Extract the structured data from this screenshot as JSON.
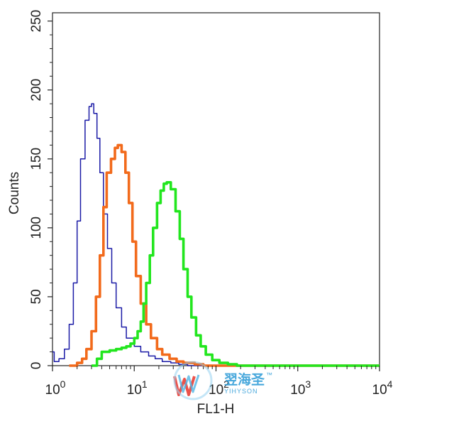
{
  "chart_data": {
    "type": "line",
    "xlabel": "FL1-H",
    "ylabel": "Counts",
    "x_scale": "log",
    "xlim": [
      1,
      10000
    ],
    "ylim": [
      0,
      256
    ],
    "x_ticks": [
      {
        "value": 1,
        "base": "10",
        "exp": "0"
      },
      {
        "value": 10,
        "base": "10",
        "exp": "1"
      },
      {
        "value": 100,
        "base": "10",
        "exp": "2"
      },
      {
        "value": 1000,
        "base": "10",
        "exp": "3"
      },
      {
        "value": 10000,
        "base": "10",
        "exp": "4"
      }
    ],
    "y_ticks": [
      0,
      50,
      100,
      150,
      200,
      250
    ],
    "grid": false,
    "series": [
      {
        "color": "#1a1aa6",
        "stroke": "thin",
        "points": [
          [
            1.0,
            10
          ],
          [
            1.05,
            3
          ],
          [
            1.1,
            3
          ],
          [
            1.2,
            5
          ],
          [
            1.4,
            12
          ],
          [
            1.6,
            30
          ],
          [
            1.8,
            60
          ],
          [
            2.0,
            105
          ],
          [
            2.2,
            150
          ],
          [
            2.5,
            178
          ],
          [
            2.8,
            188
          ],
          [
            3.0,
            190
          ],
          [
            3.2,
            183
          ],
          [
            3.5,
            165
          ],
          [
            3.8,
            140
          ],
          [
            4.2,
            110
          ],
          [
            4.7,
            85
          ],
          [
            5.3,
            60
          ],
          [
            6.0,
            42
          ],
          [
            7.0,
            28
          ],
          [
            8.0,
            20
          ],
          [
            10,
            14
          ],
          [
            12,
            10
          ],
          [
            15,
            7
          ],
          [
            18,
            5
          ],
          [
            22,
            3
          ],
          [
            28,
            2
          ],
          [
            35,
            1
          ],
          [
            45,
            0
          ],
          [
            10000,
            0
          ]
        ]
      },
      {
        "color": "#f26a1b",
        "stroke": "thick",
        "points": [
          [
            1.6,
            0
          ],
          [
            2.0,
            2
          ],
          [
            2.3,
            5
          ],
          [
            2.6,
            12
          ],
          [
            3.0,
            25
          ],
          [
            3.4,
            50
          ],
          [
            3.8,
            80
          ],
          [
            4.2,
            115
          ],
          [
            4.6,
            140
          ],
          [
            5.2,
            150
          ],
          [
            5.8,
            158
          ],
          [
            6.3,
            160
          ],
          [
            7.0,
            155
          ],
          [
            7.8,
            140
          ],
          [
            8.6,
            118
          ],
          [
            9.5,
            90
          ],
          [
            10.5,
            65
          ],
          [
            12,
            45
          ],
          [
            14,
            30
          ],
          [
            16,
            20
          ],
          [
            19,
            12
          ],
          [
            22,
            8
          ],
          [
            27,
            5
          ],
          [
            33,
            3
          ],
          [
            40,
            2
          ],
          [
            55,
            1
          ],
          [
            70,
            0
          ],
          [
            10000,
            0
          ]
        ]
      },
      {
        "color": "#22e61e",
        "stroke": "thick",
        "points": [
          [
            3.0,
            0
          ],
          [
            3.5,
            5
          ],
          [
            4.0,
            10
          ],
          [
            5,
            11
          ],
          [
            6,
            12
          ],
          [
            7,
            13
          ],
          [
            8,
            14
          ],
          [
            9,
            16
          ],
          [
            10,
            20
          ],
          [
            11,
            25
          ],
          [
            12,
            32
          ],
          [
            13,
            45
          ],
          [
            14,
            60
          ],
          [
            15.5,
            80
          ],
          [
            17,
            100
          ],
          [
            19,
            118
          ],
          [
            21,
            127
          ],
          [
            23,
            132
          ],
          [
            25,
            133
          ],
          [
            28,
            128
          ],
          [
            32,
            112
          ],
          [
            36,
            92
          ],
          [
            40,
            70
          ],
          [
            45,
            50
          ],
          [
            50,
            35
          ],
          [
            57,
            22
          ],
          [
            65,
            14
          ],
          [
            75,
            8
          ],
          [
            90,
            4
          ],
          [
            110,
            2
          ],
          [
            140,
            1
          ],
          [
            180,
            0
          ],
          [
            10000,
            0
          ]
        ]
      }
    ]
  },
  "watermark": {
    "text_cn": "翌海圣",
    "tm": "™",
    "text_en": "YIHYSON"
  }
}
